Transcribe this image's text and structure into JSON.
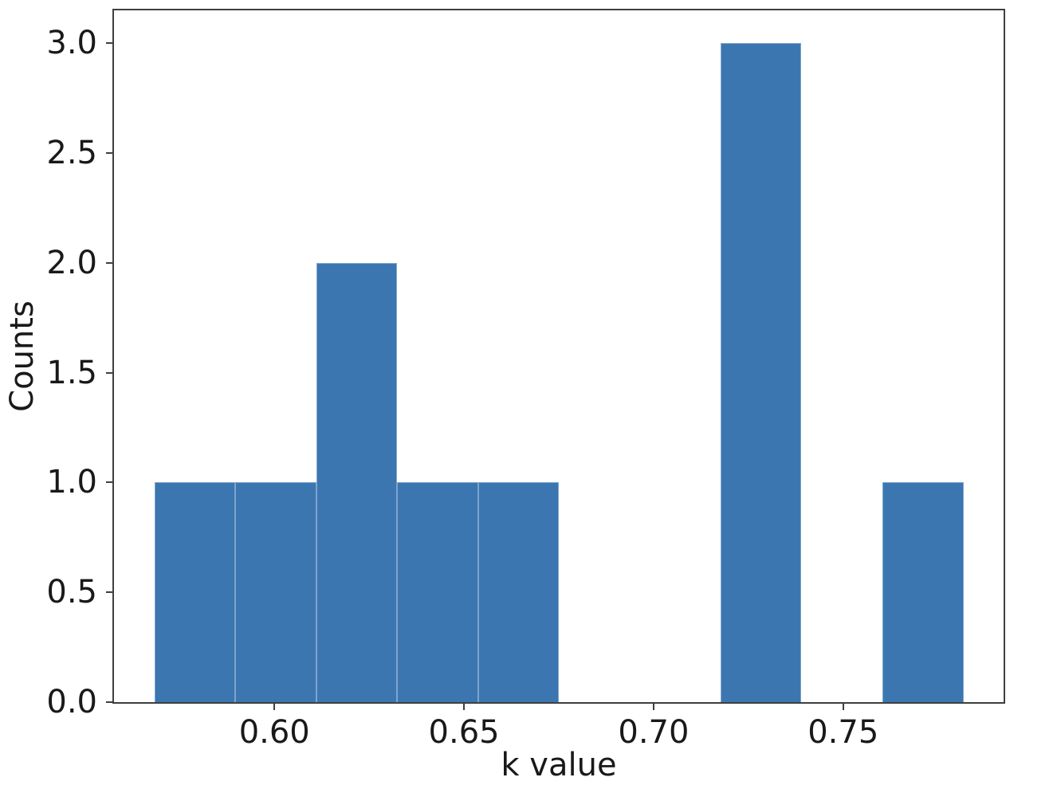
{
  "figure": {
    "background": "#ffffff",
    "spine_color": "#3f3f3f",
    "text_color": "#191919"
  },
  "chart_data": {
    "type": "bar",
    "subtype": "histogram",
    "title": "",
    "xlabel": "k value",
    "ylabel": "Counts",
    "bar_color": "#3b76b1",
    "grid": false,
    "legend": null,
    "bin_edges": [
      0.5684,
      0.5897,
      0.611,
      0.6324,
      0.6537,
      0.675,
      0.6963,
      0.7177,
      0.739,
      0.7603,
      0.7817
    ],
    "counts": [
      1,
      1,
      2,
      1,
      1,
      0,
      0,
      3,
      0,
      1
    ],
    "xlim": [
      0.5577,
      0.7923
    ],
    "ylim": [
      0,
      3.15
    ],
    "x_ticks": [
      {
        "value": 0.6,
        "label": "0.60"
      },
      {
        "value": 0.65,
        "label": "0.65"
      },
      {
        "value": 0.7,
        "label": "0.70"
      },
      {
        "value": 0.75,
        "label": "0.75"
      }
    ],
    "y_ticks": [
      {
        "value": 0.0,
        "label": "0.0"
      },
      {
        "value": 0.5,
        "label": "0.5"
      },
      {
        "value": 1.0,
        "label": "1.0"
      },
      {
        "value": 1.5,
        "label": "1.5"
      },
      {
        "value": 2.0,
        "label": "2.0"
      },
      {
        "value": 2.5,
        "label": "2.5"
      },
      {
        "value": 3.0,
        "label": "3.0"
      }
    ]
  }
}
